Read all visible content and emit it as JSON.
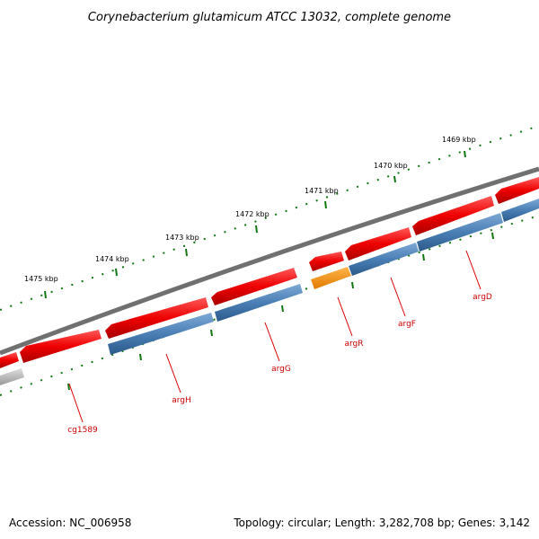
{
  "title": "Corynebacterium glutamicum ATCC 13032, complete genome",
  "footer": {
    "accession": "Accession: NC_006958",
    "topology": "Topology: circular; Length: 3,282,708 bp; Genes: 3,142"
  },
  "ruler": [
    "1469 kbp",
    "1470 kbp",
    "1471 kbp",
    "1472 kbp",
    "1473 kbp",
    "1474 kbp",
    "1475 kbp"
  ],
  "gene_labels": [
    "argD",
    "argF",
    "argR",
    "argG",
    "argH",
    "cg1589"
  ],
  "colors": {
    "forward_cds": "#ee0000",
    "reverse_cds": "#4a7fb5",
    "regulator": "#f0900a",
    "other": "#aaaaaa",
    "backbone": "#707070",
    "ruler_ticks": "#117711",
    "labels": "#cc0000"
  }
}
